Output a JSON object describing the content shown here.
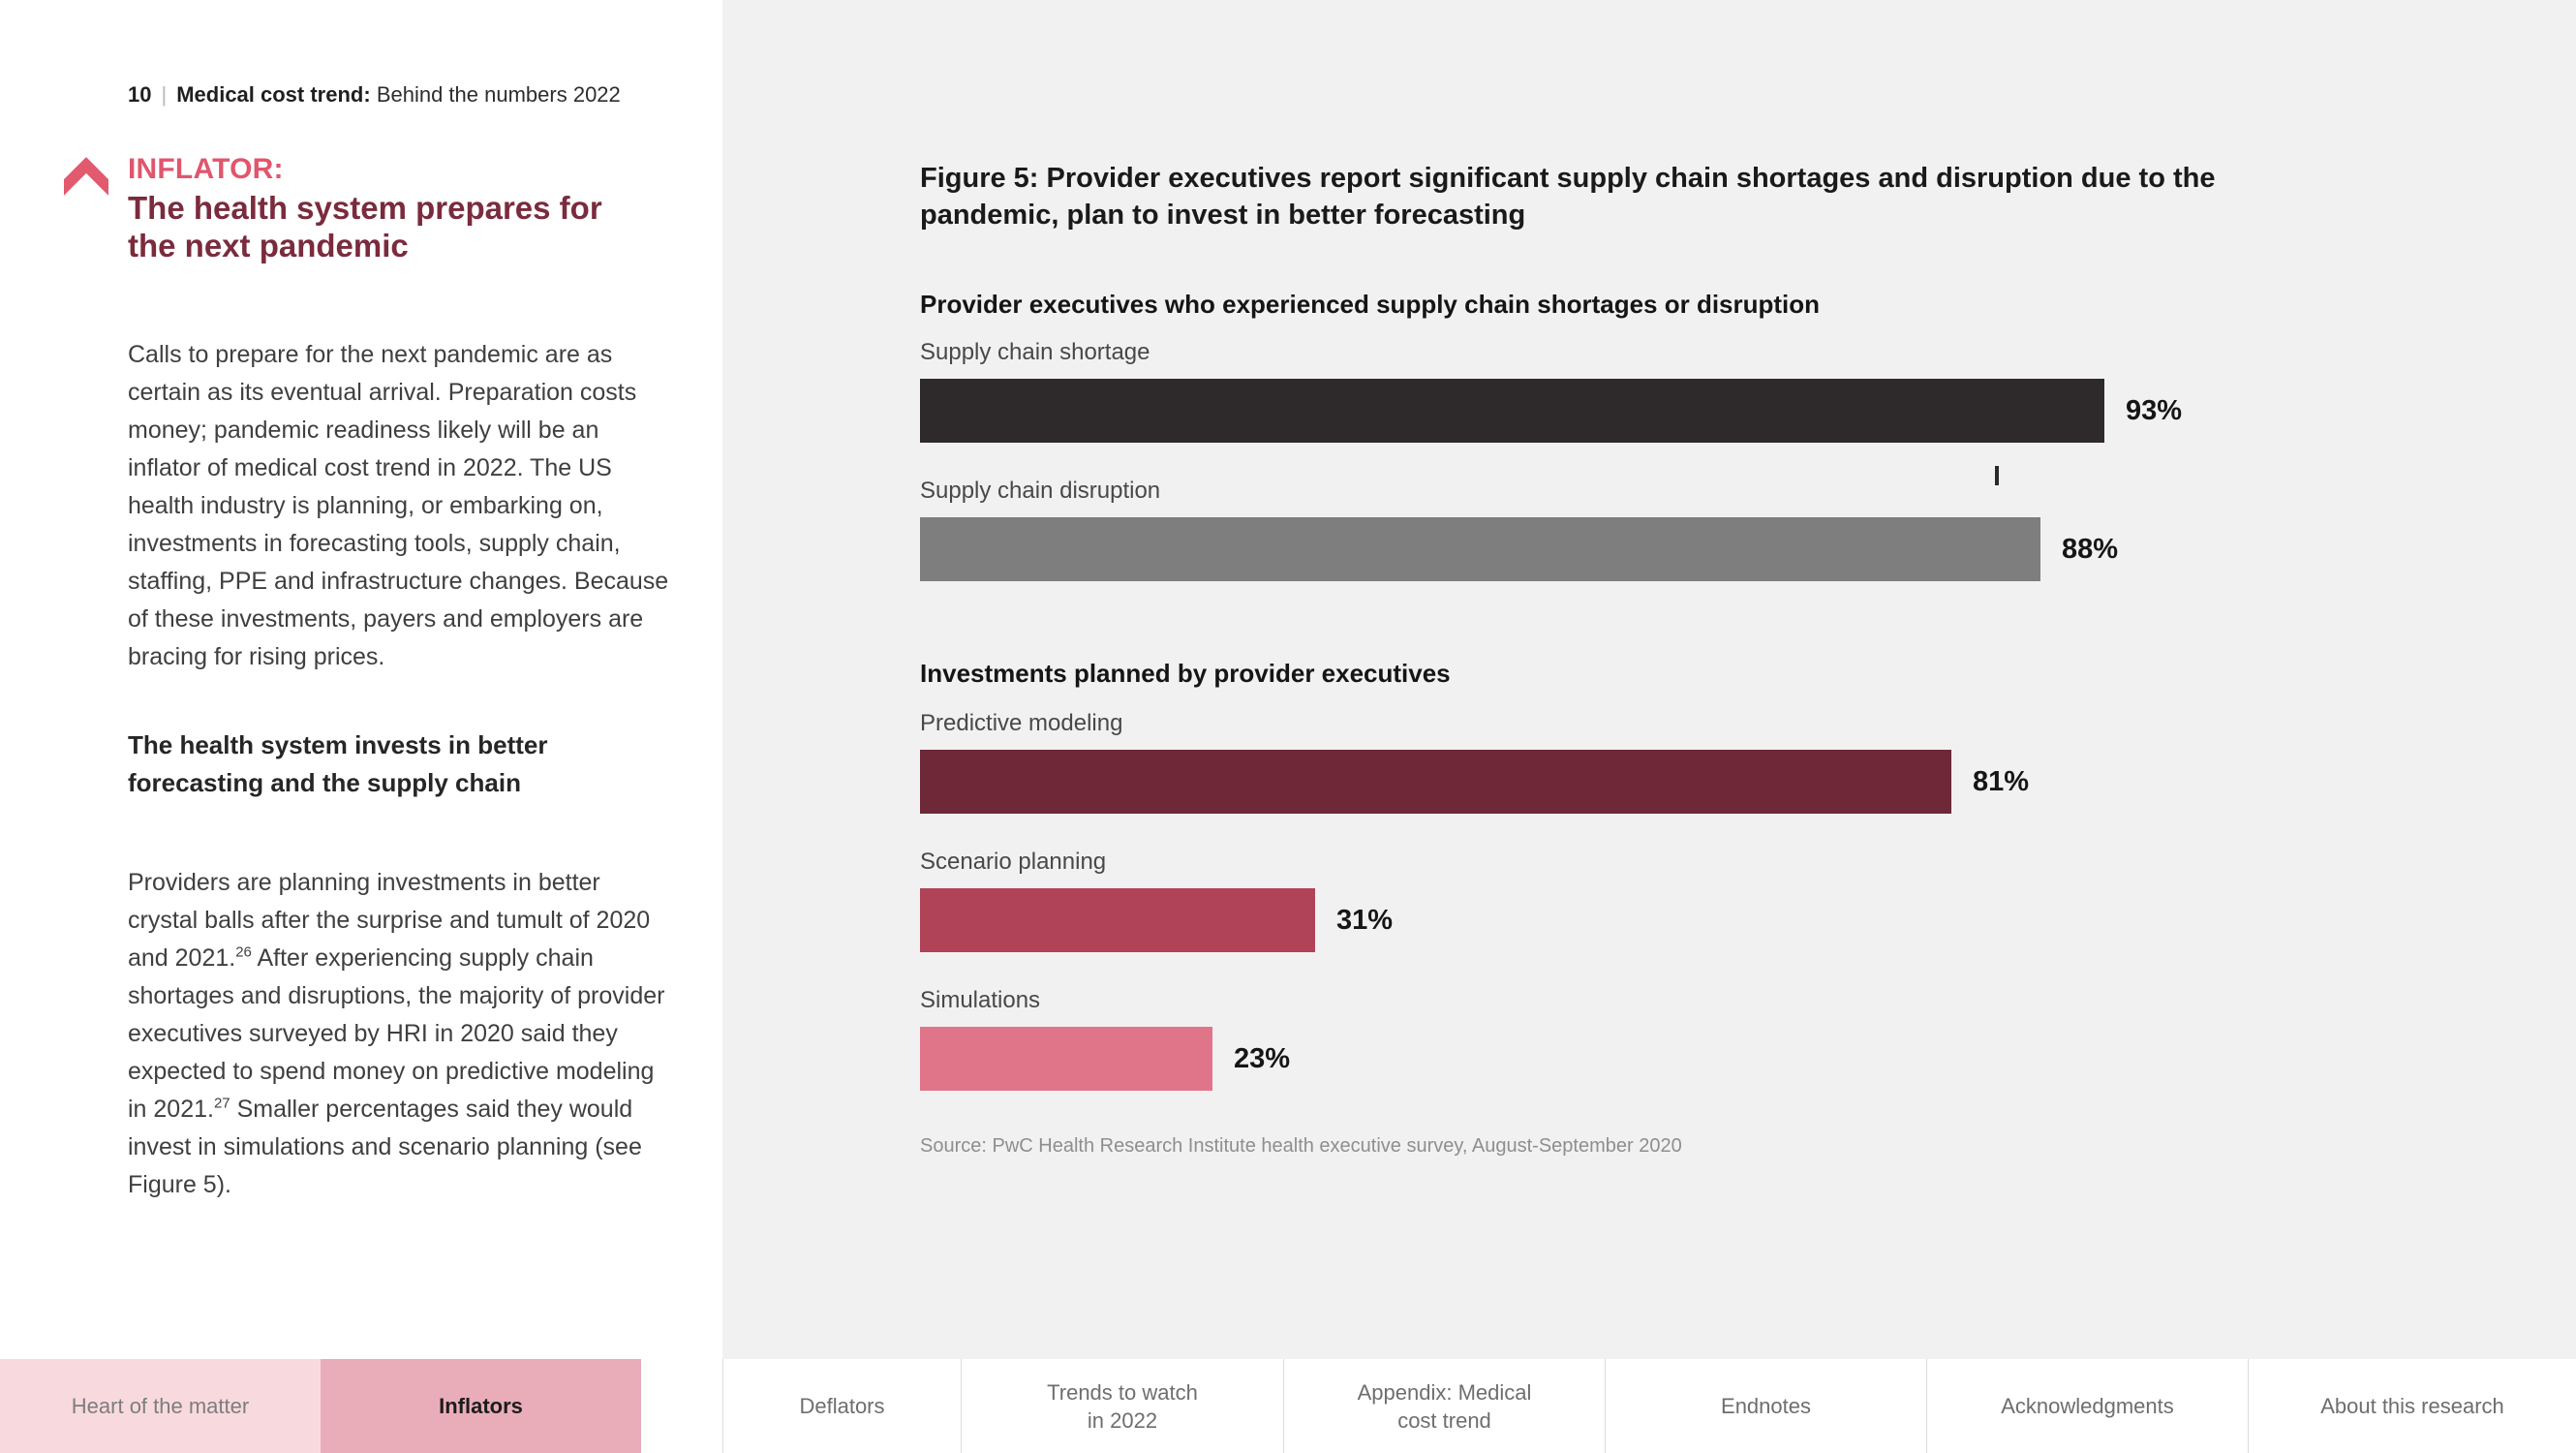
{
  "header": {
    "page_number": "10",
    "separator": "|",
    "title_bold": "Medical cost trend:",
    "title_rest": "Behind the numbers 2022"
  },
  "sidebar": {
    "kicker": "INFLATOR:",
    "heading": "The health system prepares for the next pandemic",
    "paragraph_1": "Calls to prepare for the next pandemic are as certain as its eventual arrival. Preparation costs money; pandemic readiness likely will be an inflator of medical cost trend in 2022. The US health industry is planning, or embarking on, investments in forecasting tools, supply chain, staffing, PPE and infrastructure changes. Because of these investments, payers and employers are bracing for rising prices.",
    "subheading": "The health system invests in better forecasting and the supply chain",
    "paragraph_2": {
      "part_1": "Providers are planning investments in better crystal balls after the surprise and tumult of 2020 and 2021.",
      "footnote_1": "26",
      "part_2": " After experiencing supply chain shortages and disruptions, the majority of provider executives surveyed by HRI in 2020 said they expected to spend money on predictive modeling in 2021.",
      "footnote_2": "27",
      "part_3": " Smaller percentages said they would invest in simulations and scenario planning (see Figure 5)."
    },
    "icon": "chevron-up",
    "accent_color": "#e0566c",
    "heading_color": "#7a2b3d"
  },
  "figure": {
    "title": "Figure 5: Provider executives report significant supply chain shortages and disruption due to the pandemic, plan to invest in better forecasting",
    "source": "Source: PwC Health Research Institute health executive survey, August-September 2020"
  },
  "chart_data": {
    "type": "bar",
    "orientation": "horizontal",
    "value_suffix": "%",
    "xlim": [
      0,
      100
    ],
    "grid": false,
    "legend": false,
    "groups": [
      {
        "title": "Provider executives who experienced supply chain shortages or disruption",
        "categories": [
          "Supply chain shortage",
          "Supply chain disruption"
        ],
        "values": [
          93,
          88
        ],
        "colors": [
          "#2e2a2b",
          "#7f7e7e"
        ]
      },
      {
        "title": "Investments planned by provider executives",
        "categories": [
          "Predictive modeling",
          "Scenario planning",
          "Simulations"
        ],
        "values": [
          81,
          31,
          23
        ],
        "colors": [
          "#6e2837",
          "#b04358",
          "#e0758a"
        ]
      }
    ],
    "source": "Source: PwC Health Research Institute health executive survey, August-September 2020"
  },
  "footer_nav": {
    "tabs": [
      {
        "label": "Heart of the matter",
        "state": "visited"
      },
      {
        "label": "Inflators",
        "state": "active"
      },
      {
        "label": "Deflators",
        "state": "normal"
      },
      {
        "label": "Trends to watch\nin 2022",
        "state": "normal"
      },
      {
        "label": "Appendix: Medical\ncost trend",
        "state": "normal"
      },
      {
        "label": "Endnotes",
        "state": "normal"
      },
      {
        "label": "Acknowledgments",
        "state": "normal"
      },
      {
        "label": "About this research",
        "state": "normal"
      }
    ],
    "active_bg": "#e9adb9",
    "visited_bg": "#f8dade"
  }
}
